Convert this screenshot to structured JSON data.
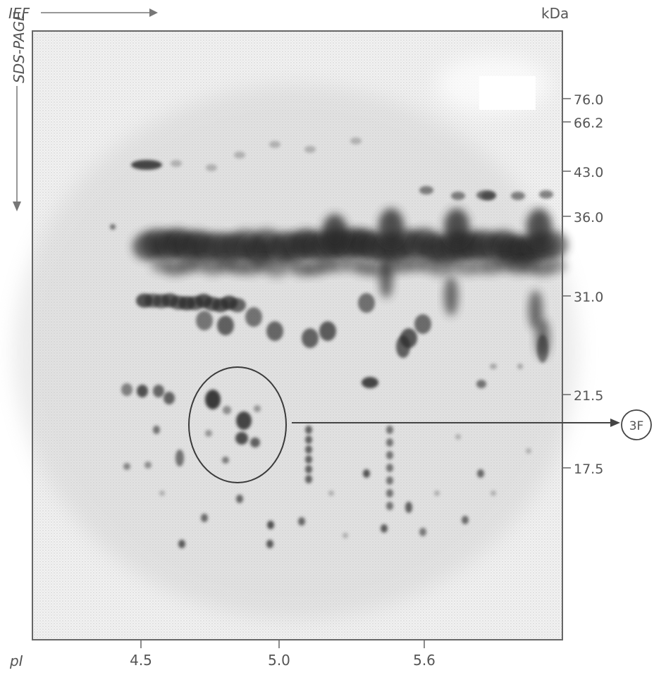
{
  "header": {
    "ief_label": "IEF",
    "sds_label": "SDS-PAGE",
    "kda_label": "kDa",
    "pi_label": "pI"
  },
  "mw_markers": [
    "76.0",
    "66.2",
    "43.0",
    "36.0",
    "31.0",
    "21.5",
    "17.5"
  ],
  "pi_ticks": [
    "4.5",
    "5.0",
    "5.6"
  ],
  "callout": {
    "label": "3F"
  },
  "colors": {
    "spot": "#2a2a2a",
    "gel": "#ececec",
    "frame": "#666666"
  }
}
